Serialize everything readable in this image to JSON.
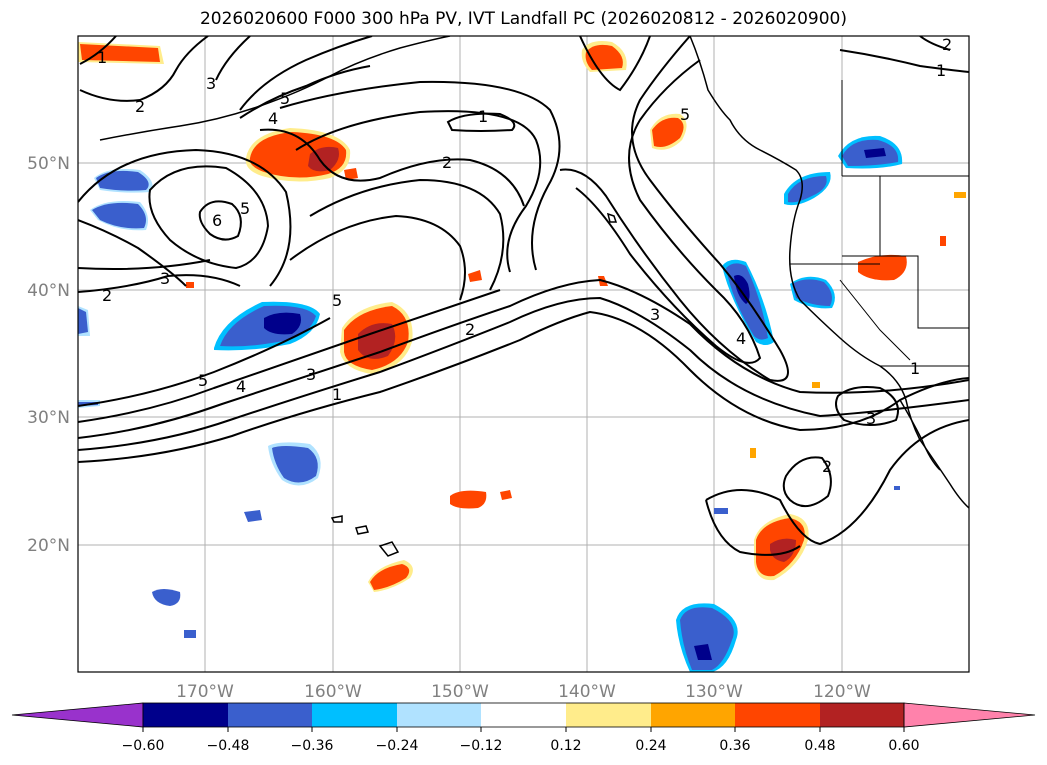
{
  "title": "2026020600 F000 300 hPa PV, IVT Landfall PC (2026020812 - 2026020900)",
  "axes": {
    "lon_labels": [
      "170°W",
      "160°W",
      "150°W",
      "140°W",
      "130°W",
      "120°W"
    ],
    "lat_labels": [
      "50°N",
      "40°N",
      "30°N",
      "20°N"
    ]
  },
  "contour_labels": [
    "1",
    "3",
    "2",
    "5",
    "4",
    "5",
    "1",
    "2",
    "6",
    "5",
    "3",
    "2",
    "2",
    "5",
    "3",
    "4",
    "5",
    "2",
    "1",
    "3",
    "4",
    "1",
    "3",
    "2",
    "1"
  ],
  "colorbar": {
    "ticks": [
      "−0.60",
      "−0.48",
      "−0.36",
      "−0.24",
      "−0.12",
      "0.12",
      "0.24",
      "0.36",
      "0.48",
      "0.60"
    ],
    "colors": [
      "#9932cc",
      "#00008b",
      "#3a5fcd",
      "#00bfff",
      "#b0e2ff",
      "#ffffff",
      "#ffec8b",
      "#ffa500",
      "#ff4500",
      "#b22222",
      "#ff82ab"
    ]
  },
  "shading_colors": {
    "neg_light": "#b0e2ff",
    "neg_mid": "#00bfff",
    "neg_strong": "#3a5fcd",
    "neg_max": "#00008b",
    "pos_light": "#ffec8b",
    "pos_mid": "#ffa500",
    "pos_strong": "#ff4500",
    "pos_max": "#b22222"
  }
}
